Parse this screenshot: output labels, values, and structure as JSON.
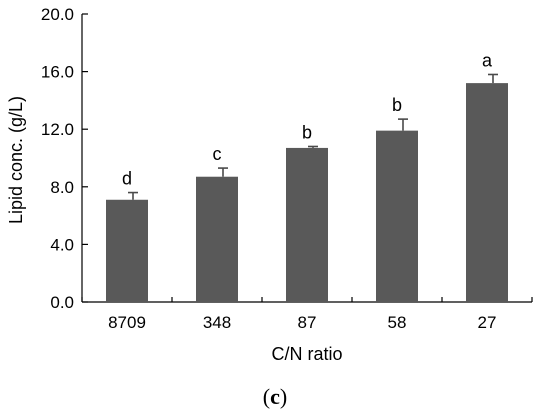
{
  "chart_data": {
    "type": "bar",
    "categories": [
      "8709",
      "348",
      "87",
      "58",
      "27"
    ],
    "values": [
      7.1,
      8.7,
      10.7,
      11.9,
      15.2
    ],
    "errors": [
      0.5,
      0.6,
      0.1,
      0.8,
      0.6
    ],
    "significance": [
      "d",
      "c",
      "b",
      "b",
      "a"
    ],
    "xlabel": "C/N ratio",
    "ylabel": "Lipid conc. (g/L)",
    "ylim": [
      0,
      20
    ],
    "yticks": [
      "0.0",
      "4.0",
      "8.0",
      "12.0",
      "16.0",
      "20.0"
    ],
    "ytick_values": [
      0,
      4,
      8,
      12,
      16,
      20
    ],
    "bar_color": "#595959",
    "grid": false,
    "legend": "none"
  },
  "panel_label": {
    "open": "(",
    "letter": "c",
    "close": ")"
  }
}
